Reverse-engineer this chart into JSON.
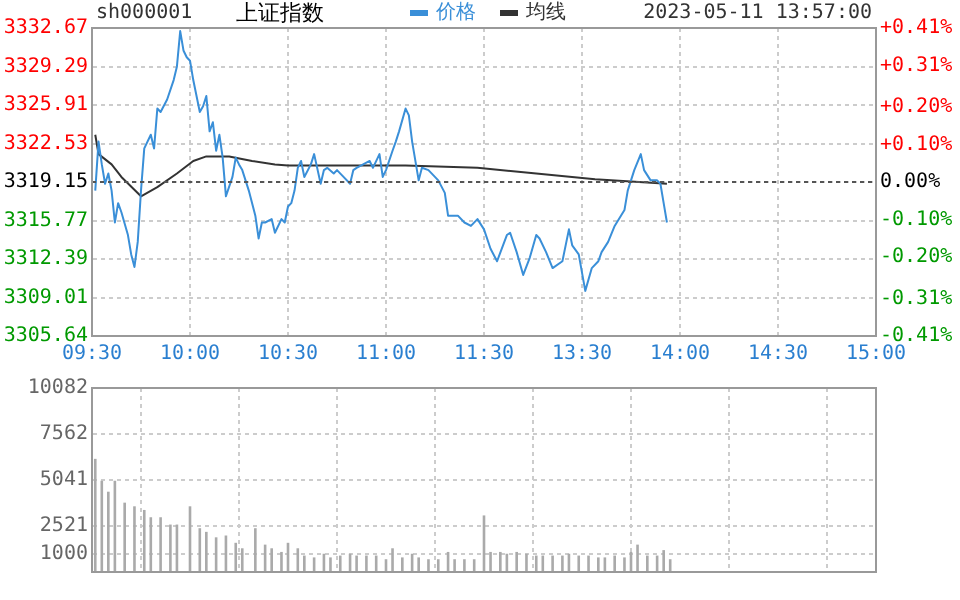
{
  "chart_data": [
    {
      "type": "line",
      "title": "上证指数",
      "subtitle": "sh000001",
      "annotations": [
        "2023-05-11 13:57:00"
      ],
      "legend": "top",
      "grid": true,
      "marker": "none",
      "line_style": "solid",
      "categories": [
        "09:30",
        null,
        null,
        null,
        null,
        null,
        null,
        null,
        null,
        null,
        null,
        null,
        null,
        null,
        null,
        null,
        null,
        null,
        null,
        null,
        null,
        null,
        null,
        null,
        null,
        null,
        null,
        null,
        null,
        null,
        "10:00",
        null,
        null,
        null,
        null,
        null,
        null,
        null,
        null,
        null,
        null,
        null,
        null,
        null,
        null,
        null,
        null,
        null,
        null,
        null,
        null,
        null,
        null,
        null,
        null,
        null,
        null,
        null,
        null,
        null,
        "10:30",
        null,
        null,
        null,
        null,
        null,
        null,
        null,
        null,
        null,
        null,
        null,
        null,
        null,
        null,
        null,
        null,
        null,
        null,
        null,
        null,
        null,
        null,
        null,
        null,
        null,
        null,
        null,
        null,
        null,
        "11:00",
        null,
        null,
        null,
        null,
        null,
        null,
        null,
        null,
        null,
        null,
        null,
        null,
        null,
        null,
        null,
        null,
        null,
        null,
        null,
        null,
        null,
        null,
        null,
        null,
        null,
        null,
        null,
        null,
        null,
        "11:30",
        null,
        null,
        null,
        null,
        null,
        null,
        null,
        null,
        null,
        null,
        null,
        null,
        null,
        null,
        null,
        null,
        null,
        null,
        null,
        null,
        null,
        null,
        null,
        null,
        null,
        null,
        null,
        null,
        null,
        "13:30",
        null,
        null,
        null,
        null,
        null,
        null,
        null,
        null,
        null,
        null,
        null,
        null,
        null,
        null,
        null,
        null,
        null,
        null,
        null,
        null,
        null,
        null,
        null,
        null,
        null,
        null,
        null,
        null,
        null,
        "14:00",
        null,
        null,
        null,
        null,
        null,
        null,
        null,
        null,
        null,
        null,
        null,
        null,
        null,
        null,
        null,
        null,
        null,
        null,
        null,
        null,
        null,
        null,
        null,
        null,
        null,
        null,
        null,
        null,
        null,
        "14:30",
        null,
        null,
        null,
        null,
        null,
        null,
        null,
        null,
        null,
        null,
        null,
        null,
        null,
        null,
        null,
        null,
        null,
        null,
        null,
        null,
        null,
        null,
        null,
        null,
        null,
        null,
        null,
        null,
        null,
        "15:00"
      ],
      "ylim": [
        3305.64,
        3332.67
      ],
      "yticks": [
        3305.64,
        3309.01,
        3312.39,
        3315.77,
        3319.15,
        3322.53,
        3325.91,
        3329.29,
        3332.67
      ],
      "y2lim": [
        -0.41,
        0.41
      ],
      "y2ticks": [
        {
          "value": -0.41,
          "label": "-0.41%"
        },
        {
          "value": -0.31,
          "label": "-0.31%"
        },
        {
          "value": -0.2,
          "label": "-0.20%"
        },
        {
          "value": -0.1,
          "label": "-0.10%"
        },
        {
          "value": 0,
          "label": "0.00%"
        },
        {
          "value": 0.1,
          "label": "+0.10%"
        },
        {
          "value": 0.2,
          "label": "+0.20%"
        },
        {
          "value": 0.31,
          "label": "+0.31%"
        },
        {
          "value": 0.41,
          "label": "+0.41%"
        }
      ],
      "ref_lines": [
        {
          "axis": "y",
          "value": 3319.15,
          "color": "#555555",
          "line_style": "dotted"
        }
      ],
      "series": [
        {
          "name": "价格",
          "color": "#3a8fd8",
          "type": "line",
          "values": [
            null,
            3318.4,
            3322.7,
            3320.7,
            3319.0,
            3319.9,
            3318.4,
            3315.6,
            3317.3,
            3316.5,
            null,
            3314.5,
            3312.8,
            3311.7,
            3313.9,
            3318.4,
            3322.1,
            null,
            3323.3,
            3322.1,
            3325.6,
            3325.3,
            null,
            3326.4,
            null,
            3328.1,
            3329.3,
            3332.4,
            3330.7,
            3330.1,
            3329.8,
            3328.1,
            null,
            3325.3,
            3325.8,
            3326.7,
            3323.6,
            3324.4,
            3321.9,
            3323.3,
            3321.3,
            3317.9,
            null,
            3319.6,
            3321.3,
            3320.7,
            3320.2,
            null,
            3318.4,
            null,
            3316.2,
            3314.2,
            3315.6,
            3315.6,
            null,
            3315.9,
            3314.7,
            null,
            3315.9,
            3315.6,
            3317.0,
            3317.3,
            3318.4,
            3320.4,
            3321.0,
            3319.6,
            null,
            3320.7,
            3321.6,
            null,
            3319.0,
            3320.2,
            3320.4,
            null,
            3319.9,
            3320.2,
            null,
            3319.6,
            null,
            3319.0,
            3320.2,
            3320.4,
            null,
            3320.7,
            null,
            3321.0,
            3320.4,
            null,
            3321.6,
            3319.6,
            3320.2,
            null,
            3321.9,
            3322.7,
            3323.6,
            null,
            3325.6,
            3325.0,
            3322.7,
            null,
            3319.3,
            3320.4,
            null,
            3320.2,
            null,
            null,
            3319.3,
            null,
            3318.2,
            3316.2,
            null,
            null,
            3316.2,
            null,
            3315.6,
            null,
            3315.3,
            null,
            3315.9,
            null,
            3315.0,
            null,
            3313.3,
            null,
            3312.2,
            null,
            null,
            3314.5,
            3314.7,
            null,
            3313.0,
            null,
            3311.0,
            null,
            3312.5,
            null,
            3314.5,
            3314.2,
            null,
            3313.0,
            null,
            3311.6,
            null,
            null,
            3312.2,
            null,
            3315.0,
            3313.6,
            null,
            3312.8,
            null,
            3309.6,
            null,
            3311.6,
            null,
            3312.2,
            3313.0,
            null,
            3313.9,
            null,
            3315.3,
            null,
            null,
            3316.7,
            3318.4,
            null,
            3320.2,
            null,
            3321.6,
            3320.2,
            null,
            3319.3,
            null,
            3319.3,
            3319.0,
            3317.3,
            3315.6,
            null,
            null,
            null,
            null,
            null,
            null,
            null,
            null,
            null,
            null,
            null,
            null,
            null,
            null,
            null,
            null,
            null,
            null,
            null,
            null,
            null,
            null,
            null,
            null,
            null,
            null,
            null,
            null,
            null,
            null,
            null,
            null,
            null,
            null,
            null,
            null,
            null,
            null,
            null,
            null,
            null,
            null,
            null,
            null,
            null,
            null,
            null,
            null,
            null,
            null,
            null,
            null,
            null,
            null,
            null,
            null,
            null,
            null,
            null,
            null,
            null,
            null,
            null,
            null
          ]
        },
        {
          "name": "均线",
          "color": "#333333",
          "type": "line",
          "values": [
            null,
            3323.3,
            3321.6,
            null,
            null,
            null,
            3320.7,
            null,
            null,
            3319.6,
            null,
            null,
            null,
            null,
            null,
            3317.9,
            null,
            null,
            null,
            null,
            3318.7,
            null,
            null,
            null,
            null,
            null,
            3319.9,
            null,
            null,
            null,
            null,
            3321.0,
            null,
            null,
            null,
            3321.4,
            null,
            null,
            null,
            null,
            null,
            null,
            3321.4,
            null,
            null,
            null,
            null,
            null,
            null,
            3321.0,
            null,
            null,
            null,
            null,
            null,
            null,
            3320.7,
            null,
            null,
            null,
            3320.6,
            null,
            null,
            null,
            null,
            null,
            null,
            null,
            null,
            null,
            null,
            null,
            null,
            null,
            null,
            null,
            null,
            null,
            3320.6,
            null,
            null,
            null,
            null,
            null,
            null,
            null,
            null,
            null,
            null,
            null,
            null,
            null,
            null,
            null,
            null,
            null,
            3320.6,
            null,
            null,
            null,
            null,
            null,
            null,
            null,
            null,
            null,
            null,
            null,
            null,
            null,
            null,
            null,
            null,
            null,
            null,
            null,
            null,
            null,
            3320.4,
            null,
            null,
            null,
            null,
            null,
            null,
            null,
            null,
            null,
            null,
            null,
            null,
            null,
            null,
            null,
            null,
            null,
            3319.9,
            null,
            null,
            null,
            null,
            null,
            null,
            null,
            null,
            null,
            null,
            null,
            null,
            null,
            null,
            null,
            null,
            null,
            3319.4,
            null,
            null,
            null,
            null,
            null,
            null,
            null,
            null,
            null,
            null,
            null,
            null,
            null,
            null,
            null,
            null,
            null,
            null,
            null,
            null,
            null,
            3319.0,
            null,
            null,
            null,
            null,
            null,
            null,
            null,
            null,
            null,
            null,
            null,
            null,
            null,
            null,
            null,
            null,
            null,
            null,
            null,
            null,
            null,
            null,
            null,
            null,
            null,
            null,
            null,
            null,
            null,
            null,
            null,
            null,
            null,
            null,
            null,
            null,
            null,
            null,
            null,
            null,
            null,
            null,
            null,
            null,
            null,
            null,
            null,
            null,
            null,
            null,
            null,
            null,
            null,
            null,
            null,
            null,
            null,
            null,
            null,
            null,
            null,
            null,
            null,
            null
          ]
        }
      ]
    },
    {
      "type": "bar",
      "grid": true,
      "tick_labels": "y",
      "categories": [
        null,
        null,
        null,
        null,
        null,
        null,
        null,
        null,
        null,
        null,
        null,
        null,
        null,
        null,
        null,
        null,
        null,
        null,
        null,
        null,
        null,
        null,
        null,
        null,
        null,
        null,
        null,
        null,
        null,
        null,
        null,
        null,
        null,
        null,
        null,
        null,
        null,
        null,
        null,
        null,
        null,
        null,
        null,
        null,
        null,
        null,
        null,
        null,
        null,
        null,
        null,
        null,
        null,
        null,
        null,
        null,
        null,
        null,
        null,
        null,
        null,
        null,
        null,
        null,
        null,
        null,
        null,
        null,
        null,
        null,
        null,
        null,
        null,
        null,
        null,
        null,
        null,
        null,
        null,
        null,
        null,
        null,
        null,
        null,
        null,
        null,
        null,
        null,
        null,
        null,
        null,
        null,
        null,
        null,
        null,
        null,
        null,
        null,
        null,
        null,
        null,
        null,
        null,
        null,
        null,
        null,
        null,
        null,
        null,
        null,
        null,
        null,
        null,
        null,
        null,
        null,
        null,
        null,
        null,
        null,
        null,
        null,
        null,
        null,
        null,
        null,
        null,
        null,
        null,
        null,
        null,
        null,
        null,
        null,
        null,
        null,
        null,
        null,
        null,
        null,
        null,
        null,
        null,
        null,
        null,
        null,
        null,
        null,
        null,
        null,
        null,
        null,
        null,
        null,
        null,
        null,
        null,
        null,
        null,
        null,
        null,
        null,
        null,
        null,
        null,
        null,
        null,
        null,
        null,
        null,
        null,
        null,
        null,
        null,
        null,
        null,
        null,
        null,
        null,
        null,
        null,
        null,
        null,
        null,
        null,
        null,
        null,
        null,
        null,
        null,
        null,
        null,
        null,
        null,
        null,
        null,
        null,
        null,
        null,
        null,
        null,
        null,
        null,
        null,
        null,
        null,
        null,
        null,
        null,
        null,
        null,
        null,
        null,
        null,
        null,
        null,
        null,
        null,
        null,
        null,
        null,
        null,
        null,
        null,
        null,
        null,
        null,
        null,
        null,
        null,
        null,
        null,
        null,
        null,
        null,
        null,
        null,
        null,
        null,
        null,
        null
      ],
      "ylim": [
        0,
        10082
      ],
      "yticks": [
        1000,
        2521,
        5041,
        7562,
        10082
      ],
      "series": [
        {
          "color": "#aaaaaa",
          "type": "bar",
          "values": [
            null,
            6200,
            null,
            5000,
            null,
            4400,
            null,
            5000,
            null,
            null,
            3800,
            null,
            null,
            3600,
            null,
            null,
            3400,
            null,
            3000,
            null,
            null,
            3000,
            null,
            null,
            2600,
            null,
            2600,
            null,
            null,
            null,
            3600,
            null,
            null,
            2400,
            null,
            2200,
            null,
            null,
            1900,
            null,
            null,
            2000,
            null,
            null,
            1600,
            null,
            1300,
            null,
            null,
            null,
            2400,
            null,
            null,
            1500,
            null,
            1300,
            null,
            null,
            1100,
            null,
            1600,
            null,
            null,
            1300,
            null,
            900,
            null,
            null,
            800,
            null,
            null,
            1000,
            null,
            800,
            null,
            null,
            900,
            null,
            null,
            1000,
            null,
            900,
            null,
            null,
            900,
            null,
            null,
            900,
            null,
            null,
            700,
            null,
            1300,
            null,
            null,
            800,
            null,
            null,
            1000,
            null,
            800,
            null,
            null,
            700,
            null,
            null,
            700,
            null,
            null,
            1100,
            null,
            700,
            null,
            null,
            700,
            null,
            null,
            700,
            null,
            null,
            3100,
            null,
            1100,
            null,
            null,
            1100,
            null,
            1000,
            null,
            null,
            1100,
            null,
            null,
            1000,
            null,
            null,
            900,
            null,
            900,
            null,
            null,
            900,
            null,
            null,
            900,
            null,
            1000,
            null,
            null,
            900,
            null,
            null,
            900,
            null,
            null,
            800,
            null,
            800,
            null,
            null,
            900,
            null,
            null,
            800,
            null,
            1100,
            null,
            1500,
            null,
            null,
            900,
            null,
            null,
            900,
            null,
            1200,
            null,
            700,
            null,
            null,
            null,
            null,
            null,
            null,
            null,
            null,
            null,
            null,
            null,
            null,
            null,
            null,
            null,
            null,
            null,
            null,
            null,
            null,
            null,
            null,
            null,
            null,
            null,
            null,
            null,
            null,
            null,
            null,
            null,
            null,
            null,
            null,
            null,
            null,
            null,
            null,
            null,
            null,
            null,
            null,
            null,
            null,
            null,
            null,
            null,
            null,
            null,
            null,
            null,
            null,
            null,
            null,
            null,
            null,
            null,
            null,
            null,
            null,
            null,
            null,
            null
          ]
        }
      ]
    }
  ]
}
